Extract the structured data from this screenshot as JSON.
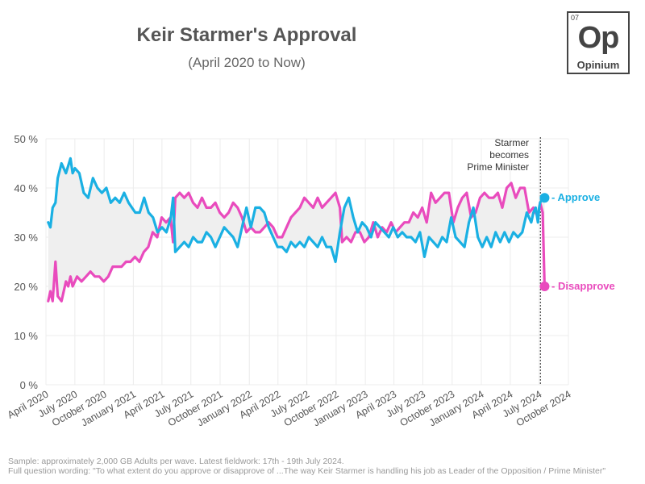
{
  "chart_data": {
    "type": "line",
    "title": "Keir Starmer's Approval",
    "subtitle": "(April 2020 to Now)",
    "ylim": [
      0,
      50
    ],
    "y_ticks": [
      "0 %",
      "10 %",
      "20 %",
      "30 %",
      "40 %",
      "50 %"
    ],
    "y_tick_values": [
      0,
      10,
      20,
      30,
      40,
      50
    ],
    "x_ticks": [
      "April 2020",
      "July 2020",
      "October 2020",
      "January 2021",
      "April 2021",
      "July 2021",
      "October 2021",
      "January 2022",
      "April 2022",
      "July 2022",
      "October 2022",
      "January 2023",
      "April 2023",
      "July 2023",
      "October 2023",
      "January 2024",
      "April 2024",
      "July 2024",
      "October 2024"
    ],
    "x_range": [
      "2020-04-01",
      "2024-10-01"
    ],
    "grid": true,
    "series": [
      {
        "name": "Approve",
        "color": "#1ab0e3",
        "values": [
          [
            "2020-04-08",
            33
          ],
          [
            "2020-04-15",
            32
          ],
          [
            "2020-04-22",
            36
          ],
          [
            "2020-05-01",
            37
          ],
          [
            "2020-05-08",
            42
          ],
          [
            "2020-05-20",
            45
          ],
          [
            "2020-06-03",
            43
          ],
          [
            "2020-06-17",
            46
          ],
          [
            "2020-06-24",
            43
          ],
          [
            "2020-07-01",
            44
          ],
          [
            "2020-07-15",
            43
          ],
          [
            "2020-07-29",
            39
          ],
          [
            "2020-08-12",
            38
          ],
          [
            "2020-08-27",
            42
          ],
          [
            "2020-09-10",
            40
          ],
          [
            "2020-09-24",
            39
          ],
          [
            "2020-10-08",
            40
          ],
          [
            "2020-10-22",
            37
          ],
          [
            "2020-11-05",
            38
          ],
          [
            "2020-11-19",
            37
          ],
          [
            "2020-12-03",
            39
          ],
          [
            "2020-12-17",
            37
          ],
          [
            "2021-01-07",
            35
          ],
          [
            "2021-01-21",
            35
          ],
          [
            "2021-02-04",
            38
          ],
          [
            "2021-02-18",
            35
          ],
          [
            "2021-03-04",
            34
          ],
          [
            "2021-03-18",
            31
          ],
          [
            "2021-04-01",
            32
          ],
          [
            "2021-04-15",
            31
          ],
          [
            "2021-04-29",
            34
          ],
          [
            "2021-05-06",
            38
          ],
          [
            "2021-05-13",
            27
          ],
          [
            "2021-05-27",
            28
          ],
          [
            "2021-06-10",
            29
          ],
          [
            "2021-06-24",
            28
          ],
          [
            "2021-07-08",
            30
          ],
          [
            "2021-07-22",
            29
          ],
          [
            "2021-08-05",
            29
          ],
          [
            "2021-08-19",
            31
          ],
          [
            "2021-09-02",
            30
          ],
          [
            "2021-09-16",
            28
          ],
          [
            "2021-09-30",
            30
          ],
          [
            "2021-10-14",
            32
          ],
          [
            "2021-10-28",
            31
          ],
          [
            "2021-11-11",
            30
          ],
          [
            "2021-11-25",
            28
          ],
          [
            "2021-12-09",
            32
          ],
          [
            "2021-12-23",
            36
          ],
          [
            "2022-01-06",
            32
          ],
          [
            "2022-01-20",
            36
          ],
          [
            "2022-02-03",
            36
          ],
          [
            "2022-02-17",
            35
          ],
          [
            "2022-03-03",
            32
          ],
          [
            "2022-03-17",
            30
          ],
          [
            "2022-03-31",
            28
          ],
          [
            "2022-04-14",
            28
          ],
          [
            "2022-04-28",
            27
          ],
          [
            "2022-05-12",
            29
          ],
          [
            "2022-05-26",
            28
          ],
          [
            "2022-06-09",
            29
          ],
          [
            "2022-06-23",
            28
          ],
          [
            "2022-07-07",
            30
          ],
          [
            "2022-07-21",
            29
          ],
          [
            "2022-08-04",
            28
          ],
          [
            "2022-08-18",
            30
          ],
          [
            "2022-09-01",
            28
          ],
          [
            "2022-09-15",
            28
          ],
          [
            "2022-09-29",
            25
          ],
          [
            "2022-10-13",
            31
          ],
          [
            "2022-10-27",
            36
          ],
          [
            "2022-11-10",
            38
          ],
          [
            "2022-11-24",
            34
          ],
          [
            "2022-12-08",
            31
          ],
          [
            "2022-12-22",
            33
          ],
          [
            "2023-01-05",
            32
          ],
          [
            "2023-01-19",
            30
          ],
          [
            "2023-02-02",
            33
          ],
          [
            "2023-02-16",
            32
          ],
          [
            "2023-03-02",
            31
          ],
          [
            "2023-03-16",
            30
          ],
          [
            "2023-03-30",
            32
          ],
          [
            "2023-04-13",
            30
          ],
          [
            "2023-04-27",
            31
          ],
          [
            "2023-05-11",
            30
          ],
          [
            "2023-05-25",
            30
          ],
          [
            "2023-06-08",
            29
          ],
          [
            "2023-06-22",
            31
          ],
          [
            "2023-07-06",
            26
          ],
          [
            "2023-07-20",
            30
          ],
          [
            "2023-08-03",
            29
          ],
          [
            "2023-08-17",
            28
          ],
          [
            "2023-08-31",
            30
          ],
          [
            "2023-09-14",
            29
          ],
          [
            "2023-09-28",
            34
          ],
          [
            "2023-10-12",
            30
          ],
          [
            "2023-10-26",
            29
          ],
          [
            "2023-11-09",
            28
          ],
          [
            "2023-11-23",
            33
          ],
          [
            "2023-12-07",
            36
          ],
          [
            "2023-12-21",
            30
          ],
          [
            "2024-01-04",
            28
          ],
          [
            "2024-01-18",
            30
          ],
          [
            "2024-02-01",
            28
          ],
          [
            "2024-02-15",
            31
          ],
          [
            "2024-02-29",
            29
          ],
          [
            "2024-03-14",
            31
          ],
          [
            "2024-03-28",
            29
          ],
          [
            "2024-04-11",
            31
          ],
          [
            "2024-04-25",
            30
          ],
          [
            "2024-05-09",
            31
          ],
          [
            "2024-05-23",
            35
          ],
          [
            "2024-06-06",
            33
          ],
          [
            "2024-06-13",
            35
          ],
          [
            "2024-06-20",
            36
          ],
          [
            "2024-06-27",
            33
          ],
          [
            "2024-07-01",
            36
          ],
          [
            "2024-07-04",
            37
          ],
          [
            "2024-07-12",
            38
          ],
          [
            "2024-07-18",
            38
          ]
        ]
      },
      {
        "name": "Disapprove",
        "color": "#e94bbd",
        "values": [
          [
            "2020-04-08",
            17
          ],
          [
            "2020-04-15",
            19
          ],
          [
            "2020-04-22",
            17
          ],
          [
            "2020-05-01",
            25
          ],
          [
            "2020-05-08",
            18
          ],
          [
            "2020-05-20",
            17
          ],
          [
            "2020-06-03",
            21
          ],
          [
            "2020-06-10",
            20
          ],
          [
            "2020-06-17",
            22
          ],
          [
            "2020-06-24",
            20
          ],
          [
            "2020-07-08",
            22
          ],
          [
            "2020-07-22",
            21
          ],
          [
            "2020-08-05",
            22
          ],
          [
            "2020-08-19",
            23
          ],
          [
            "2020-09-02",
            22
          ],
          [
            "2020-09-16",
            22
          ],
          [
            "2020-09-30",
            21
          ],
          [
            "2020-10-14",
            22
          ],
          [
            "2020-10-28",
            24
          ],
          [
            "2020-11-11",
            24
          ],
          [
            "2020-11-25",
            24
          ],
          [
            "2020-12-09",
            25
          ],
          [
            "2020-12-23",
            25
          ],
          [
            "2021-01-06",
            26
          ],
          [
            "2021-01-20",
            25
          ],
          [
            "2021-02-03",
            27
          ],
          [
            "2021-02-17",
            28
          ],
          [
            "2021-03-03",
            31
          ],
          [
            "2021-03-17",
            30
          ],
          [
            "2021-03-31",
            34
          ],
          [
            "2021-04-14",
            33
          ],
          [
            "2021-04-28",
            34
          ],
          [
            "2021-05-06",
            29
          ],
          [
            "2021-05-13",
            38
          ],
          [
            "2021-05-27",
            39
          ],
          [
            "2021-06-10",
            38
          ],
          [
            "2021-06-24",
            39
          ],
          [
            "2021-07-08",
            37
          ],
          [
            "2021-07-22",
            36
          ],
          [
            "2021-08-05",
            38
          ],
          [
            "2021-08-19",
            36
          ],
          [
            "2021-09-02",
            36
          ],
          [
            "2021-09-16",
            37
          ],
          [
            "2021-09-30",
            35
          ],
          [
            "2021-10-14",
            34
          ],
          [
            "2021-10-28",
            35
          ],
          [
            "2021-11-11",
            37
          ],
          [
            "2021-11-25",
            36
          ],
          [
            "2021-12-09",
            34
          ],
          [
            "2021-12-23",
            31
          ],
          [
            "2022-01-06",
            32
          ],
          [
            "2022-01-20",
            31
          ],
          [
            "2022-02-03",
            31
          ],
          [
            "2022-02-17",
            32
          ],
          [
            "2022-03-03",
            33
          ],
          [
            "2022-03-17",
            32
          ],
          [
            "2022-03-31",
            30
          ],
          [
            "2022-04-14",
            30
          ],
          [
            "2022-04-28",
            32
          ],
          [
            "2022-05-12",
            34
          ],
          [
            "2022-05-26",
            35
          ],
          [
            "2022-06-09",
            36
          ],
          [
            "2022-06-23",
            38
          ],
          [
            "2022-07-07",
            37
          ],
          [
            "2022-07-21",
            36
          ],
          [
            "2022-08-04",
            38
          ],
          [
            "2022-08-18",
            36
          ],
          [
            "2022-09-01",
            37
          ],
          [
            "2022-09-15",
            38
          ],
          [
            "2022-09-29",
            39
          ],
          [
            "2022-10-13",
            36
          ],
          [
            "2022-10-20",
            29
          ],
          [
            "2022-11-03",
            30
          ],
          [
            "2022-11-17",
            29
          ],
          [
            "2022-12-01",
            31
          ],
          [
            "2022-12-15",
            31
          ],
          [
            "2022-12-29",
            29
          ],
          [
            "2023-01-12",
            30
          ],
          [
            "2023-01-26",
            33
          ],
          [
            "2023-02-09",
            30
          ],
          [
            "2023-02-23",
            32
          ],
          [
            "2023-03-09",
            31
          ],
          [
            "2023-03-23",
            33
          ],
          [
            "2023-04-06",
            31
          ],
          [
            "2023-04-20",
            32
          ],
          [
            "2023-05-04",
            33
          ],
          [
            "2023-05-18",
            33
          ],
          [
            "2023-06-01",
            35
          ],
          [
            "2023-06-15",
            34
          ],
          [
            "2023-06-29",
            36
          ],
          [
            "2023-07-13",
            33
          ],
          [
            "2023-07-27",
            39
          ],
          [
            "2023-08-10",
            37
          ],
          [
            "2023-08-24",
            38
          ],
          [
            "2023-09-07",
            39
          ],
          [
            "2023-09-21",
            39
          ],
          [
            "2023-10-05",
            33
          ],
          [
            "2023-10-19",
            36
          ],
          [
            "2023-11-02",
            38
          ],
          [
            "2023-11-16",
            39
          ],
          [
            "2023-11-30",
            34
          ],
          [
            "2023-12-14",
            35
          ],
          [
            "2023-12-28",
            38
          ],
          [
            "2024-01-11",
            39
          ],
          [
            "2024-01-25",
            38
          ],
          [
            "2024-02-08",
            38
          ],
          [
            "2024-02-22",
            39
          ],
          [
            "2024-03-07",
            36
          ],
          [
            "2024-03-21",
            40
          ],
          [
            "2024-04-04",
            41
          ],
          [
            "2024-04-18",
            38
          ],
          [
            "2024-05-02",
            40
          ],
          [
            "2024-05-16",
            40
          ],
          [
            "2024-05-30",
            35
          ],
          [
            "2024-06-13",
            36
          ],
          [
            "2024-06-27",
            34
          ],
          [
            "2024-07-04",
            37
          ],
          [
            "2024-07-12",
            35
          ],
          [
            "2024-07-18",
            20
          ]
        ]
      }
    ],
    "annotations": [
      {
        "text": "Starmer becomes Prime Minister",
        "date": "2024-07-05",
        "lines": [
          "Starmer",
          "becomes",
          "Prime Minister"
        ]
      }
    ],
    "end_labels": [
      "Approve",
      "Disapprove"
    ],
    "end_values": {
      "Approve": 38,
      "Disapprove": 20
    },
    "colors": {
      "approve": "#1ab0e3",
      "disapprove": "#e94bbd",
      "fill": "#efefef",
      "grid": "#ececec"
    }
  },
  "logo": {
    "number": "07",
    "symbol": "Op",
    "name": "Opinium"
  },
  "footer": {
    "line1": "Sample: approximately 2,000 GB Adults per wave. Latest fieldwork: 17th - 19th July 2024.",
    "line2": "Full question wording: \"To what extent do you approve or disapprove of ...The way Keir Starmer is handling his job as Leader of the Opposition / Prime Minister\""
  }
}
